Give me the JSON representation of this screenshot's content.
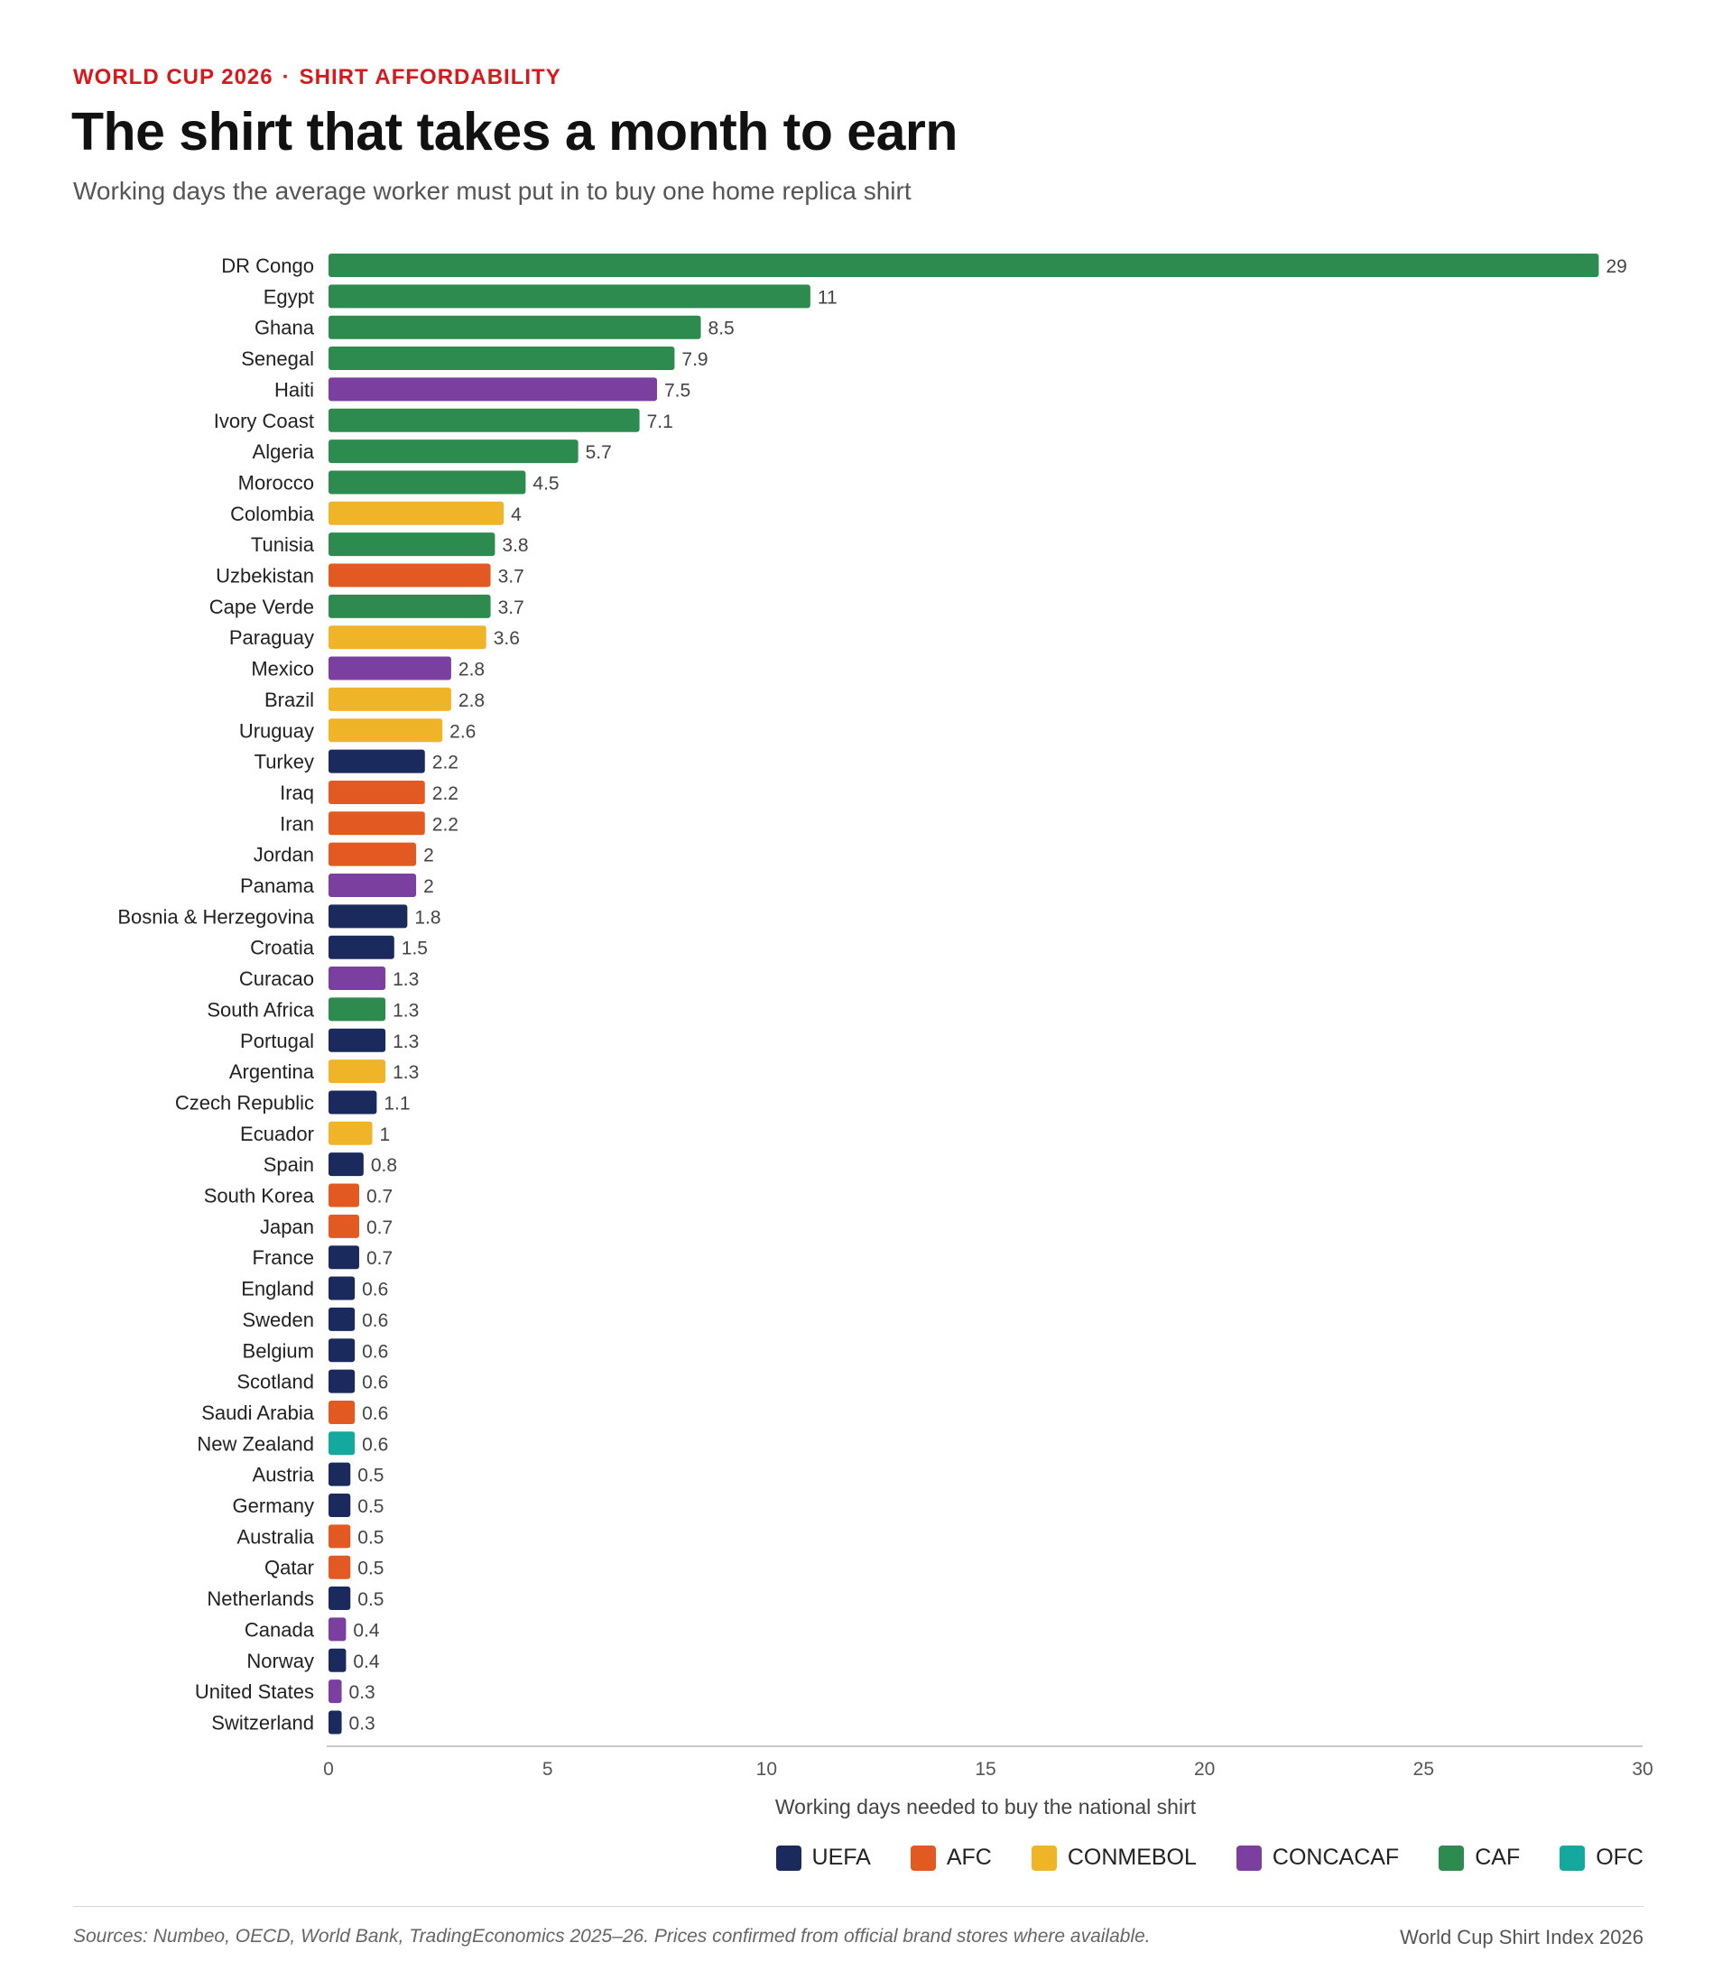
{
  "header": {
    "kicker_left": "WORLD CUP 2026",
    "kicker_sep": "·",
    "kicker_right": "SHIRT AFFORDABILITY",
    "title": "The shirt that takes a month to earn",
    "subtitle": "Working days the average worker must put in to buy one home replica shirt"
  },
  "footer": {
    "sources": "Sources: Numbeo, OECD, World Bank, TradingEconomics 2025–26. Prices confirmed from official brand stores where available.",
    "credit": "World Cup Shirt Index 2026"
  },
  "legend": [
    {
      "label": "UEFA",
      "color": "#1b2a5c"
    },
    {
      "label": "AFC",
      "color": "#e25a21"
    },
    {
      "label": "CONMEBOL",
      "color": "#f0b429"
    },
    {
      "label": "CONCACAF",
      "color": "#7b3fa0"
    },
    {
      "label": "CAF",
      "color": "#2e8b4f"
    },
    {
      "label": "OFC",
      "color": "#14a89e"
    }
  ],
  "chart_data": {
    "type": "bar",
    "orientation": "horizontal",
    "xlabel": "Working days needed to buy the national shirt",
    "xlim": [
      0,
      30
    ],
    "xticks": [
      0,
      5,
      10,
      15,
      20,
      25,
      30
    ],
    "grid": false,
    "legend_position": "bottom-right",
    "categories": [
      "DR Congo",
      "Egypt",
      "Ghana",
      "Senegal",
      "Haiti",
      "Ivory Coast",
      "Algeria",
      "Morocco",
      "Colombia",
      "Tunisia",
      "Uzbekistan",
      "Cape Verde",
      "Paraguay",
      "Mexico",
      "Brazil",
      "Uruguay",
      "Turkey",
      "Iraq",
      "Iran",
      "Jordan",
      "Panama",
      "Bosnia & Herzegovina",
      "Croatia",
      "Curacao",
      "South Africa",
      "Portugal",
      "Argentina",
      "Czech Republic",
      "Ecuador",
      "Spain",
      "South Korea",
      "Japan",
      "France",
      "England",
      "Sweden",
      "Belgium",
      "Scotland",
      "Saudi Arabia",
      "New Zealand",
      "Austria",
      "Germany",
      "Australia",
      "Qatar",
      "Netherlands",
      "Canada",
      "Norway",
      "United States",
      "Switzerland"
    ],
    "values": [
      29,
      11,
      8.5,
      7.9,
      7.5,
      7.1,
      5.7,
      4.5,
      4,
      3.8,
      3.7,
      3.7,
      3.6,
      2.8,
      2.8,
      2.6,
      2.2,
      2.2,
      2.2,
      2,
      2,
      1.8,
      1.5,
      1.3,
      1.3,
      1.3,
      1.3,
      1.1,
      1,
      0.8,
      0.7,
      0.7,
      0.7,
      0.6,
      0.6,
      0.6,
      0.6,
      0.6,
      0.6,
      0.5,
      0.5,
      0.5,
      0.5,
      0.5,
      0.4,
      0.4,
      0.3,
      0.3
    ],
    "confederations": [
      "CAF",
      "CAF",
      "CAF",
      "CAF",
      "CONCACAF",
      "CAF",
      "CAF",
      "CAF",
      "CONMEBOL",
      "CAF",
      "AFC",
      "CAF",
      "CONMEBOL",
      "CONCACAF",
      "CONMEBOL",
      "CONMEBOL",
      "UEFA",
      "AFC",
      "AFC",
      "AFC",
      "CONCACAF",
      "UEFA",
      "UEFA",
      "CONCACAF",
      "CAF",
      "UEFA",
      "CONMEBOL",
      "UEFA",
      "CONMEBOL",
      "UEFA",
      "AFC",
      "AFC",
      "UEFA",
      "UEFA",
      "UEFA",
      "UEFA",
      "UEFA",
      "AFC",
      "OFC",
      "UEFA",
      "UEFA",
      "AFC",
      "AFC",
      "UEFA",
      "CONCACAF",
      "UEFA",
      "CONCACAF",
      "UEFA"
    ]
  }
}
